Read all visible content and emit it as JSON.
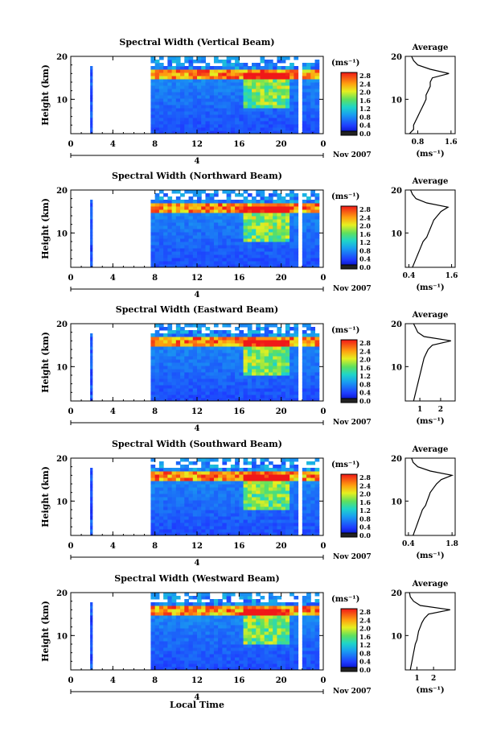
{
  "figure": {
    "xlabel": "Local Time",
    "date_label": "Nov 2007",
    "day_label": "4",
    "colorbar_unit": "(ms⁻¹)",
    "colorbar_ticks": [
      "2.8",
      "2.4",
      "2.0",
      "1.6",
      "1.2",
      "0.8",
      "0.4",
      "0.0"
    ],
    "profile_title": "Average",
    "profile_xlabel": "(ms⁻¹)"
  },
  "chart_data": [
    {
      "type": "heatmap",
      "title": "Spectral Width (Vertical Beam)",
      "ylabel": "Height (km)",
      "xlim": [
        0,
        24
      ],
      "ylim": [
        2,
        20
      ],
      "x_ticks": [
        "0",
        "4",
        "8",
        "12",
        "16",
        "20",
        "0"
      ],
      "y_ticks": [
        "10",
        "20"
      ],
      "colorbar_range": [
        0.0,
        3.0
      ],
      "data_gap_hours": [
        [
          2.3,
          7.6
        ],
        [
          21.6,
          22.1
        ]
      ],
      "profile": {
        "title": "Average",
        "xlim": [
          0.5,
          1.7
        ],
        "x_ticks": [
          "0.8",
          "1.6"
        ],
        "heights": [
          2,
          3,
          4,
          5,
          6,
          7,
          8,
          9,
          10,
          11,
          12,
          13,
          14,
          15,
          16,
          17,
          18,
          19,
          20
        ],
        "values": [
          0.6,
          0.7,
          0.7,
          0.75,
          0.8,
          0.85,
          0.9,
          0.95,
          1.0,
          1.0,
          1.05,
          1.1,
          1.1,
          1.15,
          1.55,
          1.1,
          0.8,
          0.7,
          0.65
        ]
      }
    },
    {
      "type": "heatmap",
      "title": "Spectral Width (Northward Beam)",
      "ylabel": "Height (km)",
      "xlim": [
        0,
        24
      ],
      "ylim": [
        2,
        20
      ],
      "x_ticks": [
        "0",
        "4",
        "8",
        "12",
        "16",
        "20",
        "0"
      ],
      "y_ticks": [
        "10",
        "20"
      ],
      "colorbar_range": [
        0.0,
        3.0
      ],
      "data_gap_hours": [
        [
          2.3,
          7.6
        ],
        [
          21.6,
          22.1
        ]
      ],
      "profile": {
        "title": "Average",
        "xlim": [
          0.3,
          1.7
        ],
        "x_ticks": [
          "0.4",
          "1.6"
        ],
        "heights": [
          2,
          3,
          4,
          5,
          6,
          7,
          8,
          9,
          10,
          11,
          12,
          13,
          14,
          15,
          16,
          17,
          18,
          19,
          20
        ],
        "values": [
          0.5,
          0.55,
          0.6,
          0.65,
          0.7,
          0.75,
          0.8,
          0.9,
          0.95,
          1.0,
          1.05,
          1.1,
          1.2,
          1.3,
          1.5,
          0.9,
          0.6,
          0.5,
          0.45
        ]
      }
    },
    {
      "type": "heatmap",
      "title": "Spectral Width (Eastward Beam)",
      "ylabel": "Height (km)",
      "xlim": [
        0,
        24
      ],
      "ylim": [
        2,
        20
      ],
      "x_ticks": [
        "0",
        "4",
        "8",
        "12",
        "16",
        "20",
        "0"
      ],
      "y_ticks": [
        "10",
        "20"
      ],
      "colorbar_range": [
        0.0,
        3.0
      ],
      "data_gap_hours": [
        [
          2.3,
          7.6
        ],
        [
          21.6,
          22.1
        ]
      ],
      "profile": {
        "title": "Average",
        "xlim": [
          0.3,
          2.7
        ],
        "x_ticks": [
          "1",
          "2"
        ],
        "heights": [
          2,
          3,
          4,
          5,
          6,
          7,
          8,
          9,
          10,
          11,
          12,
          13,
          14,
          15,
          16,
          17,
          18,
          19,
          20
        ],
        "values": [
          0.7,
          0.75,
          0.8,
          0.85,
          0.9,
          0.95,
          1.0,
          1.05,
          1.1,
          1.15,
          1.2,
          1.3,
          1.4,
          1.6,
          2.5,
          1.2,
          0.9,
          0.8,
          0.7
        ]
      }
    },
    {
      "type": "heatmap",
      "title": "Spectral Width (Southward Beam)",
      "ylabel": "Height (km)",
      "xlim": [
        0,
        24
      ],
      "ylim": [
        2,
        20
      ],
      "x_ticks": [
        "0",
        "4",
        "8",
        "12",
        "16",
        "20",
        "0"
      ],
      "y_ticks": [
        "10",
        "20"
      ],
      "colorbar_range": [
        0.0,
        3.0
      ],
      "data_gap_hours": [
        [
          2.3,
          7.6
        ],
        [
          21.6,
          22.1
        ]
      ],
      "profile": {
        "title": "Average",
        "xlim": [
          0.3,
          1.9
        ],
        "x_ticks": [
          "0.4",
          "1.8"
        ],
        "heights": [
          2,
          3,
          4,
          5,
          6,
          7,
          8,
          9,
          10,
          11,
          12,
          13,
          14,
          15,
          16,
          17,
          18,
          19,
          20
        ],
        "values": [
          0.55,
          0.6,
          0.65,
          0.7,
          0.75,
          0.8,
          0.85,
          0.95,
          1.0,
          1.05,
          1.1,
          1.2,
          1.3,
          1.45,
          1.8,
          1.1,
          0.7,
          0.55,
          0.5
        ]
      }
    },
    {
      "type": "heatmap",
      "title": "Spectral Width (Westward Beam)",
      "ylabel": "Height (km)",
      "xlim": [
        0,
        24
      ],
      "ylim": [
        2,
        20
      ],
      "x_ticks": [
        "0",
        "4",
        "8",
        "12",
        "16",
        "20",
        "0"
      ],
      "y_ticks": [
        "10",
        "20"
      ],
      "colorbar_range": [
        0.0,
        3.0
      ],
      "data_gap_hours": [
        [
          2.3,
          7.6
        ],
        [
          21.6,
          22.1
        ]
      ],
      "profile": {
        "title": "Average",
        "xlim": [
          0.3,
          3.3
        ],
        "x_ticks": [
          "1",
          "2"
        ],
        "heights": [
          2,
          3,
          4,
          5,
          6,
          7,
          8,
          9,
          10,
          11,
          12,
          13,
          14,
          15,
          16,
          17,
          18,
          19,
          20
        ],
        "values": [
          0.6,
          0.65,
          0.7,
          0.75,
          0.8,
          0.85,
          0.9,
          1.0,
          1.05,
          1.1,
          1.2,
          1.3,
          1.45,
          1.7,
          3.0,
          1.2,
          0.8,
          0.6,
          0.55
        ]
      }
    }
  ]
}
